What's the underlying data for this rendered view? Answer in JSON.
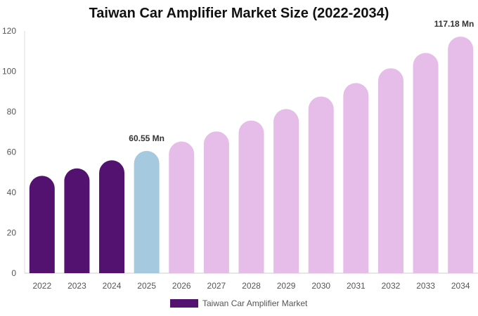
{
  "chart_data": {
    "type": "bar",
    "title": "Taiwan Car Amplifier Market Size (2022-2034)",
    "xlabel": "",
    "ylabel": "",
    "ylim": [
      0,
      120
    ],
    "yticks": [
      0,
      20,
      40,
      60,
      80,
      100,
      120
    ],
    "categories": [
      "2022",
      "2023",
      "2024",
      "2025",
      "2026",
      "2027",
      "2028",
      "2029",
      "2030",
      "2031",
      "2032",
      "2033",
      "2034"
    ],
    "series": [
      {
        "name": "Taiwan Car Amplifier Market",
        "values": [
          48.2,
          51.9,
          55.9,
          60.55,
          65.2,
          70.2,
          75.6,
          81.3,
          87.5,
          94.2,
          101.5,
          109.1,
          117.18
        ]
      }
    ],
    "bar_colors": {
      "historical": "#541270",
      "current": "#A5CADF",
      "forecast": "#E6BCE8"
    },
    "bar_status": [
      "historical",
      "historical",
      "historical",
      "current",
      "forecast",
      "forecast",
      "forecast",
      "forecast",
      "forecast",
      "forecast",
      "forecast",
      "forecast",
      "forecast"
    ],
    "data_labels": [
      {
        "category": "2025",
        "text": "60.55 Mn"
      },
      {
        "category": "2034",
        "text": "117.18 Mn"
      }
    ],
    "grid": false,
    "legend_position": "bottom"
  }
}
